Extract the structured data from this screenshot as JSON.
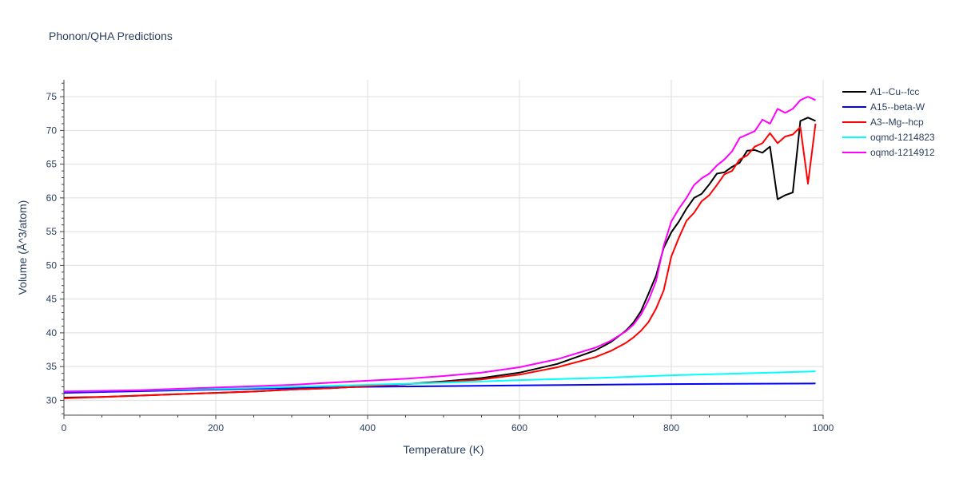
{
  "chart_data": {
    "type": "line",
    "title": "Phonon/QHA Predictions",
    "xlabel": "Temperature (K)",
    "ylabel": "Volume (Å^3/atom)",
    "xlim": [
      0,
      1000
    ],
    "ylim": [
      27.8,
      77.5
    ],
    "xticks": [
      0,
      200,
      400,
      600,
      800,
      1000
    ],
    "yticks": [
      30,
      35,
      40,
      45,
      50,
      55,
      60,
      65,
      70,
      75
    ],
    "grid": true,
    "legend_position": "right",
    "series": [
      {
        "name": "A1--Cu--fcc",
        "color": "#000000",
        "x": [
          0,
          50,
          100,
          150,
          200,
          250,
          300,
          350,
          400,
          450,
          500,
          550,
          600,
          650,
          700,
          720,
          740,
          750,
          760,
          770,
          780,
          790,
          800,
          810,
          820,
          830,
          840,
          850,
          860,
          870,
          880,
          890,
          900,
          910,
          920,
          930,
          940,
          950,
          960,
          970,
          980,
          990
        ],
        "y": [
          30.4,
          30.5,
          30.7,
          30.9,
          31.1,
          31.3,
          31.6,
          31.8,
          32.1,
          32.4,
          32.8,
          33.3,
          34.1,
          35.4,
          37.4,
          38.6,
          40.3,
          41.5,
          43.2,
          45.8,
          48.5,
          52.6,
          54.9,
          56.5,
          58.4,
          60.0,
          60.6,
          62.0,
          63.6,
          63.8,
          64.6,
          65.2,
          67.0,
          67.1,
          66.7,
          67.6,
          59.8,
          60.4,
          60.8,
          71.4,
          71.9,
          71.4
        ]
      },
      {
        "name": "A15--beta-W",
        "color": "#0000ff",
        "x": [
          0,
          200,
          400,
          600,
          800,
          990
        ],
        "y": [
          31.1,
          31.6,
          32.0,
          32.2,
          32.4,
          32.5
        ]
      },
      {
        "name": "A3--Mg--hcp",
        "color": "#ff0000",
        "x": [
          0,
          50,
          100,
          150,
          200,
          250,
          300,
          350,
          400,
          450,
          500,
          550,
          600,
          650,
          700,
          720,
          740,
          750,
          760,
          770,
          780,
          790,
          800,
          810,
          820,
          830,
          840,
          850,
          860,
          870,
          880,
          890,
          900,
          910,
          920,
          930,
          940,
          950,
          960,
          970,
          980,
          990
        ],
        "y": [
          30.3,
          30.5,
          30.7,
          30.9,
          31.1,
          31.3,
          31.6,
          31.8,
          32.1,
          32.4,
          32.7,
          33.1,
          33.8,
          34.9,
          36.4,
          37.3,
          38.5,
          39.3,
          40.3,
          41.6,
          43.6,
          46.3,
          51.3,
          54.1,
          56.6,
          57.8,
          59.5,
          60.4,
          61.9,
          63.5,
          64.0,
          65.7,
          66.3,
          67.6,
          68.1,
          69.6,
          68.1,
          69.1,
          69.4,
          70.5,
          62.1,
          71.0
        ]
      },
      {
        "name": "oqmd-1214823",
        "color": "#00ffff",
        "x": [
          0,
          100,
          200,
          300,
          400,
          500,
          600,
          700,
          800,
          900,
          990
        ],
        "y": [
          31.3,
          31.5,
          31.7,
          32.0,
          32.3,
          32.6,
          33.0,
          33.3,
          33.7,
          34.0,
          34.3
        ]
      },
      {
        "name": "oqmd-1214912",
        "color": "#ff00ff",
        "x": [
          0,
          50,
          100,
          150,
          200,
          250,
          300,
          350,
          400,
          450,
          500,
          550,
          600,
          650,
          700,
          720,
          740,
          750,
          760,
          770,
          780,
          790,
          800,
          810,
          820,
          830,
          840,
          850,
          860,
          870,
          880,
          890,
          900,
          910,
          920,
          930,
          940,
          950,
          960,
          970,
          980,
          990
        ],
        "y": [
          31.3,
          31.4,
          31.5,
          31.7,
          31.9,
          32.1,
          32.3,
          32.6,
          32.9,
          33.2,
          33.6,
          34.1,
          34.9,
          36.1,
          37.8,
          38.8,
          40.2,
          41.2,
          42.7,
          44.8,
          47.7,
          52.9,
          56.5,
          58.4,
          60.0,
          61.9,
          62.9,
          63.6,
          64.8,
          65.7,
          66.9,
          68.9,
          69.4,
          69.9,
          71.6,
          71.0,
          73.2,
          72.6,
          73.2,
          74.5,
          75.0,
          74.5
        ]
      }
    ]
  }
}
